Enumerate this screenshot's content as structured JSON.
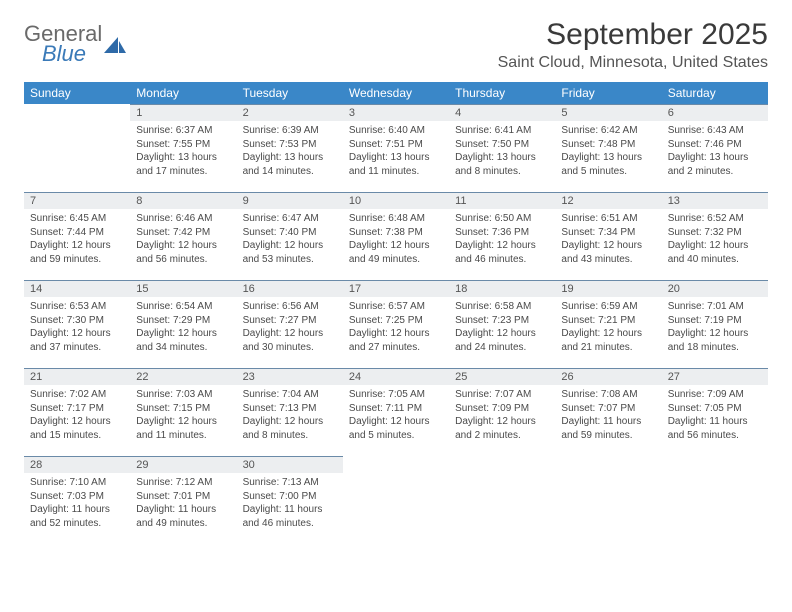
{
  "logo": {
    "general": "General",
    "blue": "Blue"
  },
  "title": "September 2025",
  "location": "Saint Cloud, Minnesota, United States",
  "colors": {
    "header_bg": "#3a87c8",
    "header_text": "#ffffff",
    "daynum_bg": "#eceef0",
    "daynum_border": "#6a8aa8",
    "text": "#4a4a4a",
    "logo_gray": "#6a6a6a",
    "logo_blue": "#3a7ab8"
  },
  "weekdays": [
    "Sunday",
    "Monday",
    "Tuesday",
    "Wednesday",
    "Thursday",
    "Friday",
    "Saturday"
  ],
  "weeks": [
    [
      null,
      {
        "n": "1",
        "sunrise": "Sunrise: 6:37 AM",
        "sunset": "Sunset: 7:55 PM",
        "daylight": "Daylight: 13 hours and 17 minutes."
      },
      {
        "n": "2",
        "sunrise": "Sunrise: 6:39 AM",
        "sunset": "Sunset: 7:53 PM",
        "daylight": "Daylight: 13 hours and 14 minutes."
      },
      {
        "n": "3",
        "sunrise": "Sunrise: 6:40 AM",
        "sunset": "Sunset: 7:51 PM",
        "daylight": "Daylight: 13 hours and 11 minutes."
      },
      {
        "n": "4",
        "sunrise": "Sunrise: 6:41 AM",
        "sunset": "Sunset: 7:50 PM",
        "daylight": "Daylight: 13 hours and 8 minutes."
      },
      {
        "n": "5",
        "sunrise": "Sunrise: 6:42 AM",
        "sunset": "Sunset: 7:48 PM",
        "daylight": "Daylight: 13 hours and 5 minutes."
      },
      {
        "n": "6",
        "sunrise": "Sunrise: 6:43 AM",
        "sunset": "Sunset: 7:46 PM",
        "daylight": "Daylight: 13 hours and 2 minutes."
      }
    ],
    [
      {
        "n": "7",
        "sunrise": "Sunrise: 6:45 AM",
        "sunset": "Sunset: 7:44 PM",
        "daylight": "Daylight: 12 hours and 59 minutes."
      },
      {
        "n": "8",
        "sunrise": "Sunrise: 6:46 AM",
        "sunset": "Sunset: 7:42 PM",
        "daylight": "Daylight: 12 hours and 56 minutes."
      },
      {
        "n": "9",
        "sunrise": "Sunrise: 6:47 AM",
        "sunset": "Sunset: 7:40 PM",
        "daylight": "Daylight: 12 hours and 53 minutes."
      },
      {
        "n": "10",
        "sunrise": "Sunrise: 6:48 AM",
        "sunset": "Sunset: 7:38 PM",
        "daylight": "Daylight: 12 hours and 49 minutes."
      },
      {
        "n": "11",
        "sunrise": "Sunrise: 6:50 AM",
        "sunset": "Sunset: 7:36 PM",
        "daylight": "Daylight: 12 hours and 46 minutes."
      },
      {
        "n": "12",
        "sunrise": "Sunrise: 6:51 AM",
        "sunset": "Sunset: 7:34 PM",
        "daylight": "Daylight: 12 hours and 43 minutes."
      },
      {
        "n": "13",
        "sunrise": "Sunrise: 6:52 AM",
        "sunset": "Sunset: 7:32 PM",
        "daylight": "Daylight: 12 hours and 40 minutes."
      }
    ],
    [
      {
        "n": "14",
        "sunrise": "Sunrise: 6:53 AM",
        "sunset": "Sunset: 7:30 PM",
        "daylight": "Daylight: 12 hours and 37 minutes."
      },
      {
        "n": "15",
        "sunrise": "Sunrise: 6:54 AM",
        "sunset": "Sunset: 7:29 PM",
        "daylight": "Daylight: 12 hours and 34 minutes."
      },
      {
        "n": "16",
        "sunrise": "Sunrise: 6:56 AM",
        "sunset": "Sunset: 7:27 PM",
        "daylight": "Daylight: 12 hours and 30 minutes."
      },
      {
        "n": "17",
        "sunrise": "Sunrise: 6:57 AM",
        "sunset": "Sunset: 7:25 PM",
        "daylight": "Daylight: 12 hours and 27 minutes."
      },
      {
        "n": "18",
        "sunrise": "Sunrise: 6:58 AM",
        "sunset": "Sunset: 7:23 PM",
        "daylight": "Daylight: 12 hours and 24 minutes."
      },
      {
        "n": "19",
        "sunrise": "Sunrise: 6:59 AM",
        "sunset": "Sunset: 7:21 PM",
        "daylight": "Daylight: 12 hours and 21 minutes."
      },
      {
        "n": "20",
        "sunrise": "Sunrise: 7:01 AM",
        "sunset": "Sunset: 7:19 PM",
        "daylight": "Daylight: 12 hours and 18 minutes."
      }
    ],
    [
      {
        "n": "21",
        "sunrise": "Sunrise: 7:02 AM",
        "sunset": "Sunset: 7:17 PM",
        "daylight": "Daylight: 12 hours and 15 minutes."
      },
      {
        "n": "22",
        "sunrise": "Sunrise: 7:03 AM",
        "sunset": "Sunset: 7:15 PM",
        "daylight": "Daylight: 12 hours and 11 minutes."
      },
      {
        "n": "23",
        "sunrise": "Sunrise: 7:04 AM",
        "sunset": "Sunset: 7:13 PM",
        "daylight": "Daylight: 12 hours and 8 minutes."
      },
      {
        "n": "24",
        "sunrise": "Sunrise: 7:05 AM",
        "sunset": "Sunset: 7:11 PM",
        "daylight": "Daylight: 12 hours and 5 minutes."
      },
      {
        "n": "25",
        "sunrise": "Sunrise: 7:07 AM",
        "sunset": "Sunset: 7:09 PM",
        "daylight": "Daylight: 12 hours and 2 minutes."
      },
      {
        "n": "26",
        "sunrise": "Sunrise: 7:08 AM",
        "sunset": "Sunset: 7:07 PM",
        "daylight": "Daylight: 11 hours and 59 minutes."
      },
      {
        "n": "27",
        "sunrise": "Sunrise: 7:09 AM",
        "sunset": "Sunset: 7:05 PM",
        "daylight": "Daylight: 11 hours and 56 minutes."
      }
    ],
    [
      {
        "n": "28",
        "sunrise": "Sunrise: 7:10 AM",
        "sunset": "Sunset: 7:03 PM",
        "daylight": "Daylight: 11 hours and 52 minutes."
      },
      {
        "n": "29",
        "sunrise": "Sunrise: 7:12 AM",
        "sunset": "Sunset: 7:01 PM",
        "daylight": "Daylight: 11 hours and 49 minutes."
      },
      {
        "n": "30",
        "sunrise": "Sunrise: 7:13 AM",
        "sunset": "Sunset: 7:00 PM",
        "daylight": "Daylight: 11 hours and 46 minutes."
      },
      null,
      null,
      null,
      null
    ]
  ]
}
